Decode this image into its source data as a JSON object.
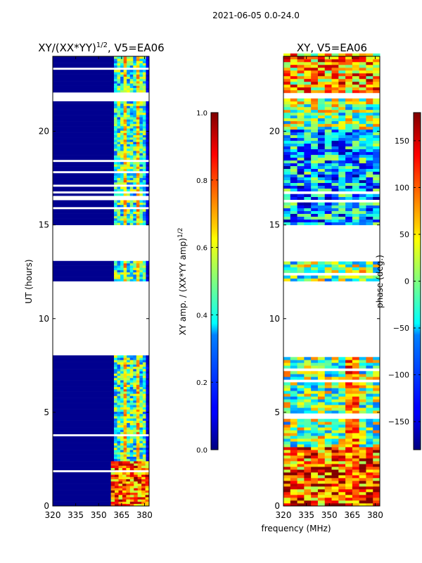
{
  "figure": {
    "suptitle": "2021-06-05 0.0-24.0"
  },
  "chart_data": [
    {
      "type": "heatmap",
      "title_main": "XY/(XX*YY)",
      "title_exp": "1/2",
      "title_suffix": ", V5=EA06",
      "xlabel": "",
      "ylabel": "UT (hours)",
      "xlim": [
        320,
        383
      ],
      "ylim": [
        0,
        24
      ],
      "xticks": [
        "320",
        "335",
        "350",
        "365",
        "380"
      ],
      "yticks": [
        "0",
        "5",
        "10",
        "15",
        "20"
      ],
      "colormap": "jet",
      "quantity": "normalized XY amplitude",
      "active_band_mhz": [
        360,
        382
      ],
      "data_gaps_hours": [
        [
          7.95,
          11.9
        ],
        [
          13.0,
          14.9
        ],
        [
          21.6,
          22.0
        ]
      ],
      "colorbar": {
        "label_main": "XY amp. / (XX*YY amp)",
        "label_exp": "1/2",
        "range": [
          0.0,
          1.0
        ],
        "ticks": [
          "0.0",
          "0.2",
          "0.4",
          "0.6",
          "0.8",
          "1.0"
        ]
      }
    },
    {
      "type": "heatmap",
      "title": "XY, V5=EA06",
      "xlabel": "frequency (MHz)",
      "ylabel": "",
      "xlim": [
        320,
        383
      ],
      "ylim": [
        0,
        24
      ],
      "xticks": [
        "320",
        "335",
        "350",
        "365",
        "380"
      ],
      "yticks": [
        "0",
        "5",
        "10",
        "15",
        "20"
      ],
      "colormap": "jet",
      "quantity": "XY phase (deg)",
      "data_gaps_hours": [
        [
          7.95,
          11.9
        ],
        [
          13.0,
          14.9
        ],
        [
          21.6,
          22.0
        ]
      ],
      "colorbar": {
        "label": "phase (deg.)",
        "range": [
          -180,
          180
        ],
        "ticks": [
          "−150",
          "−100",
          "−50",
          "0",
          "50",
          "100",
          "150"
        ]
      }
    }
  ]
}
